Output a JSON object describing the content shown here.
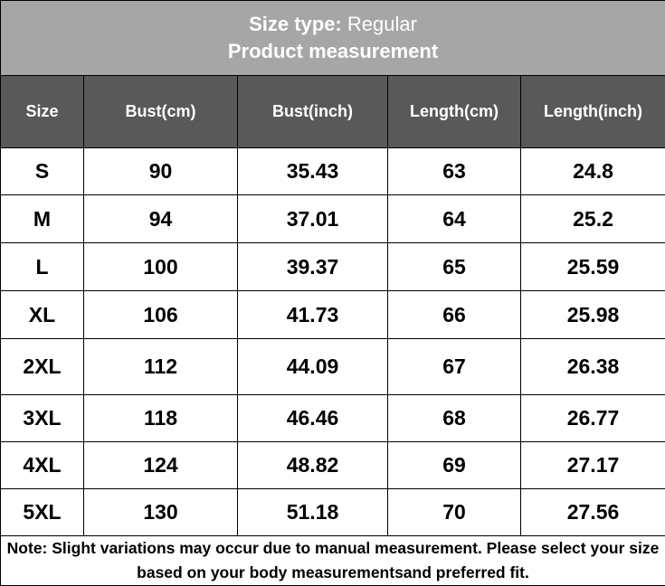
{
  "title": {
    "label": "Size type:",
    "value": "Regular",
    "subtitle": "Product measurement"
  },
  "table": {
    "columns": [
      "Size",
      "Bust(cm)",
      "Bust(inch)",
      "Length(cm)",
      "Length(inch)"
    ],
    "rows": [
      [
        "S",
        90,
        35.43,
        63,
        24.8
      ],
      [
        "M",
        94,
        37.01,
        64,
        25.2
      ],
      [
        "L",
        100,
        39.37,
        65,
        25.59
      ],
      [
        "XL",
        106,
        41.73,
        66,
        25.98
      ],
      [
        "2XL",
        112,
        44.09,
        67,
        26.38
      ],
      [
        "3XL",
        118,
        46.46,
        68,
        26.77
      ],
      [
        "4XL",
        124,
        48.82,
        69,
        27.17
      ],
      [
        "5XL",
        130,
        51.18,
        70,
        27.56
      ]
    ]
  },
  "note": "Note: Slight variations may occur due to manual measurement. Please select your size based on your body measurementsand preferred fit."
}
